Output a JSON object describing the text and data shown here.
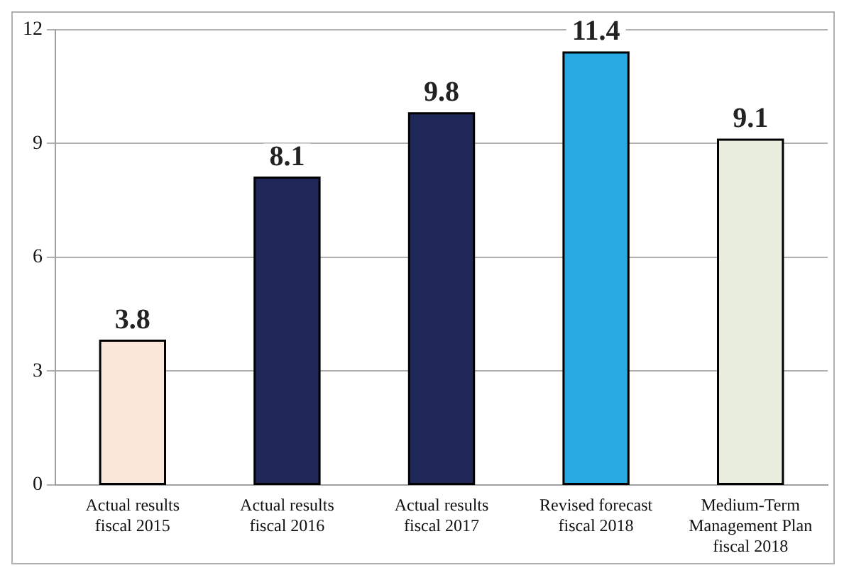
{
  "chart_data": {
    "type": "bar",
    "categories": [
      "Actual results fiscal 2015",
      "Actual results fiscal 2016",
      "Actual results fiscal 2017",
      "Revised forecast fiscal 2018",
      "Medium-Term Management Plan fiscal 2018"
    ],
    "values": [
      3.8,
      8.1,
      9.8,
      11.4,
      9.1
    ],
    "colors": [
      "#fbe8da",
      "#1f2759",
      "#1f2759",
      "#29a9e1",
      "#e9eddd"
    ],
    "ylim": [
      0,
      12
    ],
    "yticks": [
      0,
      3,
      6,
      9,
      12
    ],
    "grid": "y",
    "data_labels": true
  }
}
